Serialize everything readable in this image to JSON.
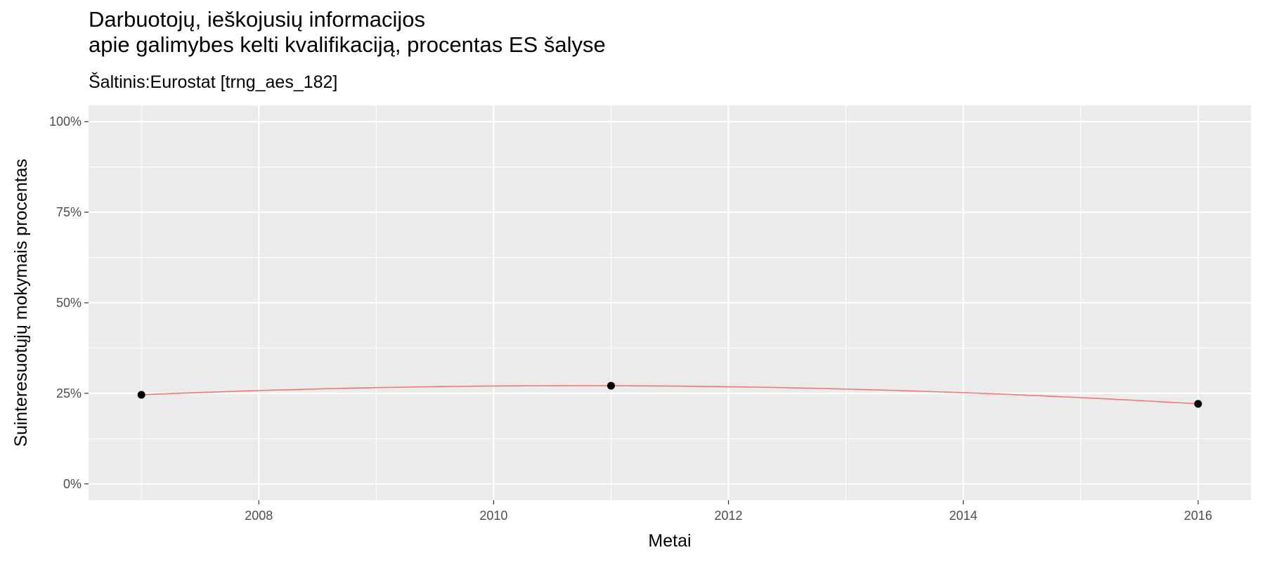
{
  "title_line1": "Darbuotojų, ieškojusių informacijos",
  "title_line2": "apie galimybes kelti kvalifikaciją, procentas ES šalyse",
  "subtitle": "Šaltinis:Eurostat [trng_aes_182]",
  "chart_data": {
    "type": "line",
    "xlabel": "Metai",
    "ylabel": "Suinteresuotųjų mokymais procentas",
    "x_ticks": [
      "2008",
      "2010",
      "2012",
      "2014",
      "2016"
    ],
    "y_ticks": [
      "0%",
      "25%",
      "50%",
      "75%",
      "100%"
    ],
    "xlim": [
      2006.55,
      2016.45
    ],
    "ylim": [
      0,
      100
    ],
    "grid": true,
    "smooth_line_color": "#F8766D",
    "point_color": "#000000",
    "panel_background": "#EBEBEB",
    "series": [
      {
        "x": [
          2007,
          2011,
          2016
        ],
        "y": [
          24.6,
          27.1,
          22.1
        ]
      }
    ]
  }
}
